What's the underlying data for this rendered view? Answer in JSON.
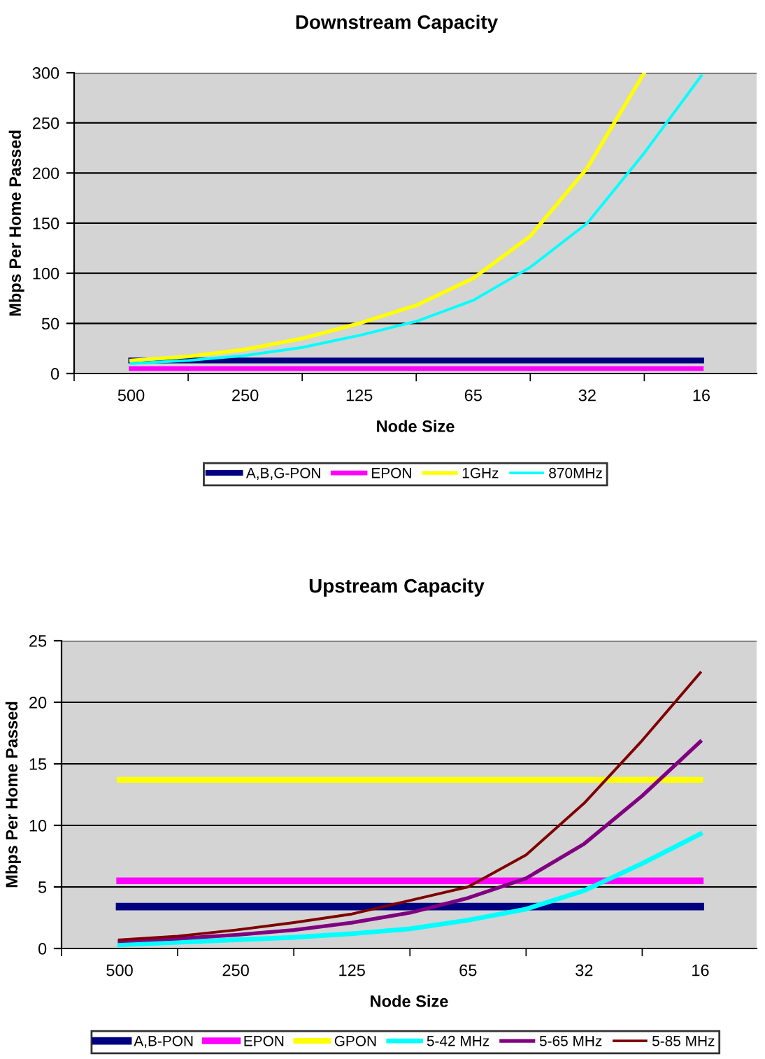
{
  "chart_data": [
    {
      "type": "line",
      "title": "Downstream Capacity",
      "xlabel": "Node Size",
      "ylabel": "Mbps Per Home Passed",
      "categories": [
        "500",
        null,
        "250",
        null,
        "125",
        null,
        "65",
        null,
        "32",
        null,
        "16"
      ],
      "ylim": [
        0,
        300
      ],
      "yticks": [
        0,
        50,
        100,
        150,
        200,
        250,
        300
      ],
      "grid": "y",
      "legend": "bottom",
      "marker": "none",
      "line_style": "solid",
      "series": [
        {
          "name": "A,B,G-PON",
          "color": "#000080",
          "values": [
            13,
            13,
            13,
            13,
            13,
            13,
            13,
            13,
            13,
            13,
            13
          ]
        },
        {
          "name": "EPON",
          "color": "#ff00ff",
          "values": [
            5,
            5,
            5,
            5,
            5,
            5,
            5,
            5,
            5,
            5,
            5
          ]
        },
        {
          "name": "1GHz",
          "color": "#ffff00",
          "values": [
            13,
            17,
            24,
            35,
            50,
            68,
            95,
            137,
            205,
            300,
            null
          ]
        },
        {
          "name": "870MHz",
          "color": "#00ffff",
          "values": [
            10,
            13,
            18,
            26,
            38,
            52,
            73,
            106,
            150,
            220,
            297
          ]
        }
      ]
    },
    {
      "type": "line",
      "title": "Upstream Capacity",
      "xlabel": "Node Size",
      "ylabel": "Mbps Per Home Passed",
      "categories": [
        "500",
        null,
        "250",
        null,
        "125",
        null,
        "65",
        null,
        "32",
        null,
        "16"
      ],
      "ylim": [
        0,
        25
      ],
      "yticks": [
        0,
        5,
        10,
        15,
        20,
        25
      ],
      "grid": "y",
      "legend": "bottom",
      "marker": "none",
      "line_style": "solid",
      "series": [
        {
          "name": "A,B-PON",
          "color": "#000080",
          "values": [
            3.4,
            3.4,
            3.4,
            3.4,
            3.4,
            3.4,
            3.4,
            3.4,
            3.4,
            3.4,
            3.4
          ]
        },
        {
          "name": "EPON",
          "color": "#ff00ff",
          "values": [
            5.5,
            5.5,
            5.5,
            5.5,
            5.5,
            5.5,
            5.5,
            5.5,
            5.5,
            5.5,
            5.5
          ]
        },
        {
          "name": "GPON",
          "color": "#ffff00",
          "values": [
            13.7,
            13.7,
            13.7,
            13.7,
            13.7,
            13.7,
            13.7,
            13.7,
            13.7,
            13.7,
            13.7
          ]
        },
        {
          "name": "5-42 MHz",
          "color": "#00ffff",
          "values": [
            0.3,
            0.5,
            0.7,
            0.9,
            1.2,
            1.6,
            2.3,
            3.2,
            4.7,
            6.9,
            9.3
          ]
        },
        {
          "name": "5-65 MHz",
          "color": "#800080",
          "values": [
            0.6,
            0.8,
            1.1,
            1.5,
            2.1,
            2.9,
            4.1,
            5.7,
            8.5,
            12.4,
            16.8
          ]
        },
        {
          "name": "5-85 MHz",
          "color": "#800000",
          "values": [
            0.7,
            1.0,
            1.5,
            2.1,
            2.8,
            3.9,
            5.0,
            7.6,
            11.8,
            16.9,
            22.4
          ]
        }
      ]
    }
  ]
}
